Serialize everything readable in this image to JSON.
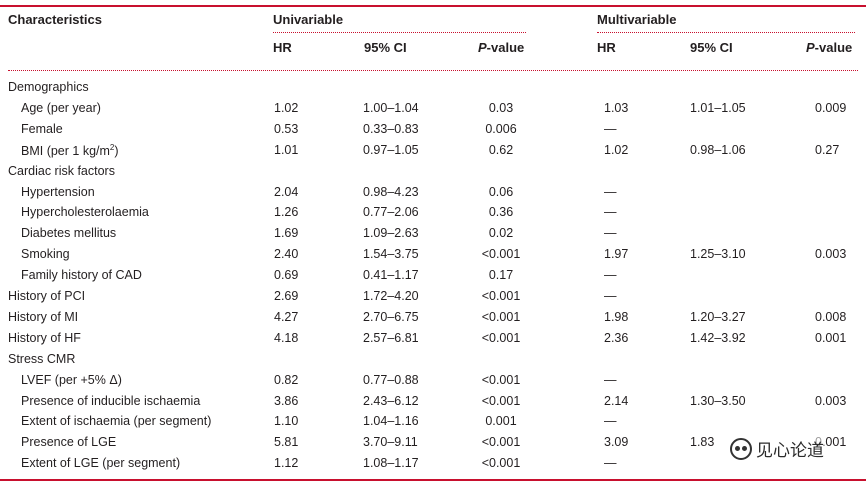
{
  "header": {
    "characteristics": "Characteristics",
    "univariable": "Univariable",
    "multivariable": "Multivariable",
    "hr": "HR",
    "ci": "95% CI",
    "p_prefix": "P",
    "p_suffix": "-value"
  },
  "rows": [
    {
      "label": "Demographics",
      "indent": false,
      "section": true,
      "u_hr": "",
      "u_ci": "",
      "u_p": "",
      "m_hr": "",
      "m_ci": "",
      "m_p": ""
    },
    {
      "label": "Age (per year)",
      "indent": true,
      "u_hr": "1.02",
      "u_ci": "1.00–1.04",
      "u_p": "0.03",
      "m_hr": "1.03",
      "m_ci": "1.01–1.05",
      "m_p": "0.009"
    },
    {
      "label": "Female",
      "indent": true,
      "u_hr": "0.53",
      "u_ci": "0.33–0.83",
      "u_p": "0.006",
      "m_hr": "—",
      "m_ci": "",
      "m_p": ""
    },
    {
      "label": "BMI (per 1 kg/m",
      "label_sup": "2",
      "label_end": ")",
      "indent": true,
      "u_hr": "1.01",
      "u_ci": "0.97–1.05",
      "u_p": "0.62",
      "m_hr": "1.02",
      "m_ci": "0.98–1.06",
      "m_p": "0.27"
    },
    {
      "label": "Cardiac risk factors",
      "indent": false,
      "section": true,
      "u_hr": "",
      "u_ci": "",
      "u_p": "",
      "m_hr": "",
      "m_ci": "",
      "m_p": ""
    },
    {
      "label": "Hypertension",
      "indent": true,
      "u_hr": "2.04",
      "u_ci": "0.98–4.23",
      "u_p": "0.06",
      "m_hr": "—",
      "m_ci": "",
      "m_p": ""
    },
    {
      "label": "Hypercholesterolaemia",
      "indent": true,
      "u_hr": "1.26",
      "u_ci": "0.77–2.06",
      "u_p": "0.36",
      "m_hr": "—",
      "m_ci": "",
      "m_p": ""
    },
    {
      "label": "Diabetes mellitus",
      "indent": true,
      "u_hr": "1.69",
      "u_ci": "1.09–2.63",
      "u_p": "0.02",
      "m_hr": "—",
      "m_ci": "",
      "m_p": ""
    },
    {
      "label": "Smoking",
      "indent": true,
      "u_hr": "2.40",
      "u_ci": "1.54–3.75",
      "u_p": "<0.001",
      "m_hr": "1.97",
      "m_ci": "1.25–3.10",
      "m_p": "0.003"
    },
    {
      "label": "Family history of CAD",
      "indent": true,
      "u_hr": "0.69",
      "u_ci": "0.41–1.17",
      "u_p": "0.17",
      "m_hr": "—",
      "m_ci": "",
      "m_p": ""
    },
    {
      "label": "History of PCI",
      "indent": false,
      "u_hr": "2.69",
      "u_ci": "1.72–4.20",
      "u_p": "<0.001",
      "m_hr": "—",
      "m_ci": "",
      "m_p": ""
    },
    {
      "label": "History of MI",
      "indent": false,
      "u_hr": "4.27",
      "u_ci": "2.70–6.75",
      "u_p": "<0.001",
      "m_hr": "1.98",
      "m_ci": "1.20–3.27",
      "m_p": "0.008"
    },
    {
      "label": "History of HF",
      "indent": false,
      "u_hr": "4.18",
      "u_ci": "2.57–6.81",
      "u_p": "<0.001",
      "m_hr": "2.36",
      "m_ci": "1.42–3.92",
      "m_p": "0.001"
    },
    {
      "label": "Stress CMR",
      "indent": false,
      "section": true,
      "u_hr": "",
      "u_ci": "",
      "u_p": "",
      "m_hr": "",
      "m_ci": "",
      "m_p": ""
    },
    {
      "label": "LVEF (per +5% Δ)",
      "indent": true,
      "u_hr": "0.82",
      "u_ci": "0.77–0.88",
      "u_p": "<0.001",
      "m_hr": "—",
      "m_ci": "",
      "m_p": ""
    },
    {
      "label": "Presence of inducible ischaemia",
      "indent": true,
      "u_hr": "3.86",
      "u_ci": "2.43–6.12",
      "u_p": "<0.001",
      "m_hr": "2.14",
      "m_ci": "1.30–3.50",
      "m_p": "0.003"
    },
    {
      "label": "Extent of ischaemia (per segment)",
      "indent": true,
      "u_hr": "1.10",
      "u_ci": "1.04–1.16",
      "u_p": "0.001",
      "m_hr": "—",
      "m_ci": "",
      "m_p": ""
    },
    {
      "label": "Presence of LGE",
      "indent": true,
      "u_hr": "5.81",
      "u_ci": "3.70–9.11",
      "u_p": "<0.001",
      "m_hr": "3.09",
      "m_ci": "1.83",
      "m_p": "0.001"
    },
    {
      "label": "Extent of LGE (per segment)",
      "indent": true,
      "u_hr": "1.12",
      "u_ci": "1.08–1.17",
      "u_p": "<0.001",
      "m_hr": "—",
      "m_ci": "",
      "m_p": ""
    }
  ],
  "watermark": {
    "text": "见心论道",
    "icon": "wechat-icon"
  },
  "colors": {
    "rule": "#c8102e",
    "text": "#231f20"
  }
}
